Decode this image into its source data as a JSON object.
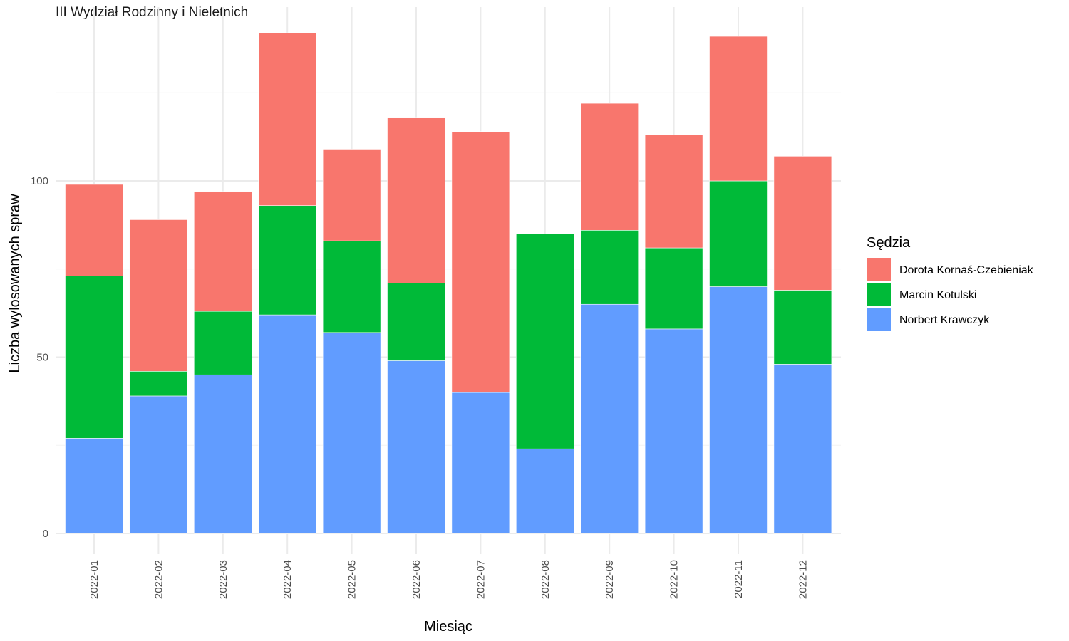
{
  "chart_data": {
    "type": "bar",
    "stacked": true,
    "subtitle": "III Wydział Rodzinny i Nieletnich",
    "xlabel": "Miesiąc",
    "ylabel": "Liczba wylosowanych spraw",
    "ylim": [
      0,
      150
    ],
    "yticks": [
      0,
      50,
      100
    ],
    "grid": true,
    "legend": {
      "title": "Sędzia",
      "position": "right"
    },
    "categories": [
      "2022-01",
      "2022-02",
      "2022-03",
      "2022-04",
      "2022-05",
      "2022-06",
      "2022-07",
      "2022-08",
      "2022-09",
      "2022-10",
      "2022-11",
      "2022-12"
    ],
    "series": [
      {
        "name": "Norbert Krawczyk",
        "color": "#619CFF",
        "values": [
          27,
          39,
          45,
          62,
          57,
          49,
          40,
          24,
          65,
          58,
          70,
          48
        ]
      },
      {
        "name": "Marcin Kotulski",
        "color": "#00BA38",
        "values": [
          46,
          7,
          18,
          31,
          26,
          22,
          0,
          61,
          21,
          23,
          30,
          21
        ]
      },
      {
        "name": "Dorota Kornaś-Czebieniak",
        "color": "#F8766D",
        "values": [
          26,
          43,
          34,
          49,
          26,
          47,
          74,
          0,
          36,
          32,
          41,
          38
        ]
      }
    ],
    "legend_order": [
      "Dorota Kornaś-Czebieniak",
      "Marcin Kotulski",
      "Norbert Krawczyk"
    ]
  }
}
